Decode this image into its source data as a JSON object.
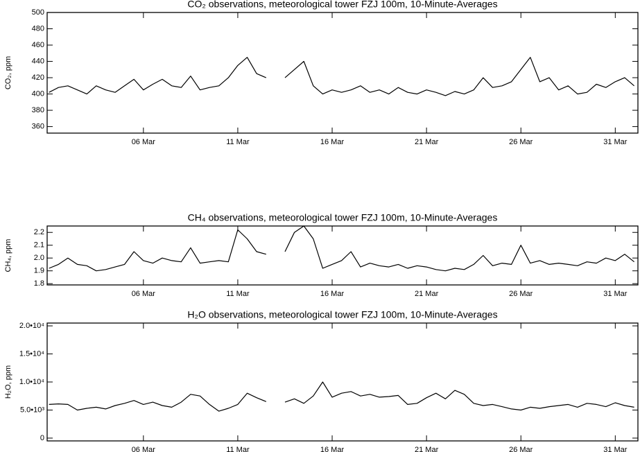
{
  "chart_data": [
    {
      "type": "line",
      "title": "CO₂ observations, meteorological tower FZJ 100m, 10-Minute-Averages",
      "y_label": "CO₂, ppm",
      "x": [
        1,
        1.5,
        2,
        2.5,
        3,
        3.5,
        4,
        4.5,
        5,
        5.5,
        6,
        6.5,
        7,
        7.5,
        8,
        8.5,
        9,
        9.5,
        10,
        10.5,
        11,
        11.5,
        12,
        12.5,
        13,
        13.5,
        14,
        14.5,
        15,
        15.5,
        16,
        16.5,
        17,
        17.5,
        18,
        18.5,
        19,
        19.5,
        20,
        20.5,
        21,
        21.5,
        22,
        22.5,
        23,
        23.5,
        24,
        24.5,
        25,
        25.5,
        26,
        26.5,
        27,
        27.5,
        28,
        28.5,
        29,
        29.5,
        30,
        30.5,
        31,
        31.5,
        32
      ],
      "values": [
        402,
        408,
        410,
        405,
        400,
        410,
        405,
        402,
        410,
        418,
        405,
        412,
        418,
        410,
        408,
        422,
        405,
        408,
        410,
        420,
        435,
        445,
        425,
        420,
        null,
        420,
        430,
        440,
        410,
        400,
        405,
        402,
        405,
        410,
        402,
        405,
        400,
        408,
        402,
        400,
        405,
        402,
        398,
        403,
        400,
        405,
        420,
        408,
        410,
        415,
        430,
        445,
        415,
        420,
        405,
        410,
        400,
        402,
        412,
        408,
        415,
        420,
        410
      ],
      "color": "#000000",
      "xlim": [
        0.9,
        32.2
      ],
      "xticks": [
        {
          "value": 6,
          "label": "06 Mar"
        },
        {
          "value": 11,
          "label": "11 Mar"
        },
        {
          "value": 16,
          "label": "16 Mar"
        },
        {
          "value": 21,
          "label": "21 Mar"
        },
        {
          "value": 26,
          "label": "26 Mar"
        },
        {
          "value": 31,
          "label": "31 Mar"
        }
      ],
      "ylim": [
        352,
        500
      ],
      "yticks": [
        360,
        380,
        400,
        420,
        440,
        460,
        480,
        500
      ]
    },
    {
      "type": "line",
      "title": "CH₄ observations, meteorological tower FZJ 100m, 10-Minute-Averages",
      "y_label": "CH₄, ppm",
      "x": [
        1,
        1.5,
        2,
        2.5,
        3,
        3.5,
        4,
        4.5,
        5,
        5.5,
        6,
        6.5,
        7,
        7.5,
        8,
        8.5,
        9,
        9.5,
        10,
        10.5,
        11,
        11.5,
        12,
        12.5,
        13,
        13.5,
        14,
        14.5,
        15,
        15.5,
        16,
        16.5,
        17,
        17.5,
        18,
        18.5,
        19,
        19.5,
        20,
        20.5,
        21,
        21.5,
        22,
        22.5,
        23,
        23.5,
        24,
        24.5,
        25,
        25.5,
        26,
        26.5,
        27,
        27.5,
        28,
        28.5,
        29,
        29.5,
        30,
        30.5,
        31,
        31.5,
        32
      ],
      "values": [
        1.92,
        1.95,
        2.0,
        1.95,
        1.94,
        1.9,
        1.91,
        1.93,
        1.95,
        2.05,
        1.98,
        1.96,
        2.0,
        1.98,
        1.97,
        2.08,
        1.96,
        1.97,
        1.98,
        1.97,
        2.22,
        2.15,
        2.05,
        2.03,
        null,
        2.05,
        2.2,
        2.25,
        2.15,
        1.92,
        1.95,
        1.98,
        2.05,
        1.93,
        1.96,
        1.94,
        1.93,
        1.95,
        1.92,
        1.94,
        1.93,
        1.91,
        1.9,
        1.92,
        1.91,
        1.95,
        2.02,
        1.94,
        1.96,
        1.95,
        2.1,
        1.96,
        1.98,
        1.95,
        1.96,
        1.95,
        1.94,
        1.97,
        1.96,
        2.0,
        1.98,
        2.03,
        1.97
      ],
      "color": "#000000",
      "xlim": [
        0.9,
        32.2
      ],
      "xticks": [
        {
          "value": 6,
          "label": "06 Mar"
        },
        {
          "value": 11,
          "label": "11 Mar"
        },
        {
          "value": 16,
          "label": "16 Mar"
        },
        {
          "value": 21,
          "label": "21 Mar"
        },
        {
          "value": 26,
          "label": "26 Mar"
        },
        {
          "value": 31,
          "label": "31 Mar"
        }
      ],
      "ylim": [
        1.79,
        2.25
      ],
      "yticks": [
        1.8,
        1.9,
        {
          "value": 2,
          "label": "2.0"
        },
        2.1,
        2.2
      ]
    },
    {
      "type": "line",
      "title": "H₂O observations, meteorological tower FZJ 100m, 10-Minute-Averages",
      "y_label": "H₂O, ppm",
      "x": [
        1,
        1.5,
        2,
        2.5,
        3,
        3.5,
        4,
        4.5,
        5,
        5.5,
        6,
        6.5,
        7,
        7.5,
        8,
        8.5,
        9,
        9.5,
        10,
        10.5,
        11,
        11.5,
        12,
        12.5,
        13,
        13.5,
        14,
        14.5,
        15,
        15.5,
        16,
        16.5,
        17,
        17.5,
        18,
        18.5,
        19,
        19.5,
        20,
        20.5,
        21,
        21.5,
        22,
        22.5,
        23,
        23.5,
        24,
        24.5,
        25,
        25.5,
        26,
        26.5,
        27,
        27.5,
        28,
        28.5,
        29,
        29.5,
        30,
        30.5,
        31,
        31.5,
        32
      ],
      "values": [
        6000,
        6100,
        6000,
        5000,
        5300,
        5500,
        5200,
        5800,
        6200,
        6700,
        6000,
        6400,
        5800,
        5500,
        6400,
        7800,
        7500,
        6000,
        4800,
        5300,
        6000,
        8000,
        7200,
        6500,
        null,
        6400,
        7000,
        6200,
        7500,
        10000,
        7300,
        8000,
        8300,
        7500,
        7800,
        7300,
        7400,
        7600,
        6000,
        6200,
        7200,
        8000,
        7000,
        8500,
        7800,
        6200,
        5800,
        6000,
        5600,
        5200,
        5000,
        5500,
        5300,
        5600,
        5800,
        6000,
        5500,
        6200,
        6000,
        5600,
        6300,
        5800,
        5500
      ],
      "color": "#000000",
      "xlim": [
        0.9,
        32.2
      ],
      "xticks": [
        {
          "value": 6,
          "label": "06 Mar"
        },
        {
          "value": 11,
          "label": "11 Mar"
        },
        {
          "value": 16,
          "label": "16 Mar"
        },
        {
          "value": 21,
          "label": "21 Mar"
        },
        {
          "value": 26,
          "label": "26 Mar"
        },
        {
          "value": 31,
          "label": "31 Mar"
        }
      ],
      "ylim": [
        -500,
        20500
      ],
      "yticks": [
        0,
        {
          "value": 5000,
          "label": "5.0•10³"
        },
        {
          "value": 10000,
          "label": "1.0•10⁴"
        },
        {
          "value": 15000,
          "label": "1.5•10⁴"
        },
        {
          "value": 20000,
          "label": "2.0•10⁴"
        }
      ]
    }
  ]
}
